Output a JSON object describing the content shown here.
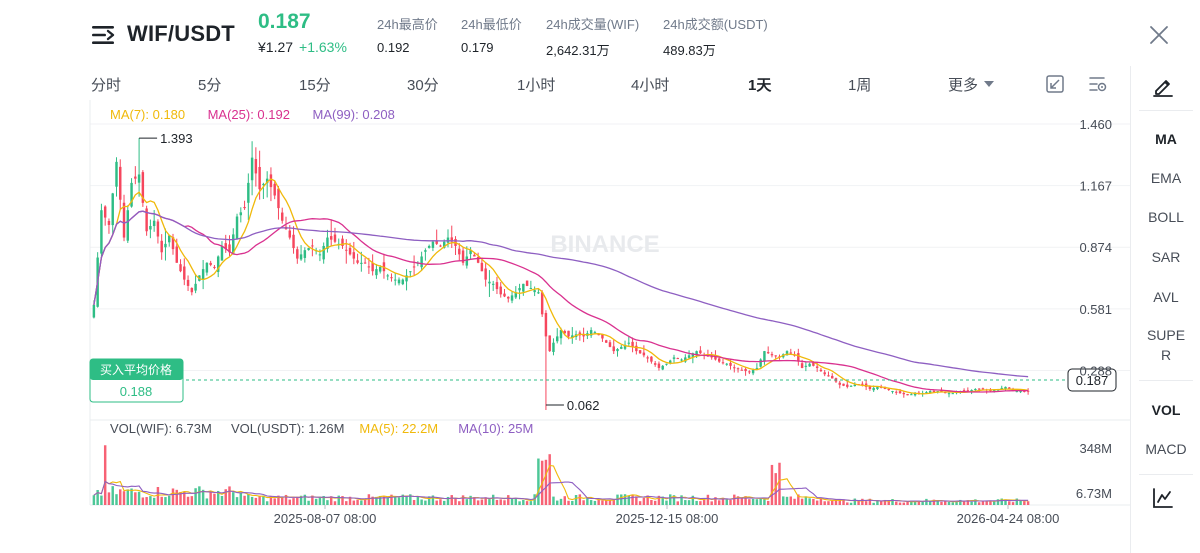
{
  "header": {
    "pair": "WIF/USDT",
    "last_price": "0.187",
    "cny_price": "¥1.27",
    "change": "+1.63%",
    "stats": [
      {
        "label": "24h最高价",
        "value": "0.192"
      },
      {
        "label": "24h最低价",
        "value": "0.179"
      },
      {
        "label": "24h成交量(WIF)",
        "value": "2,642.31万"
      },
      {
        "label": "24h成交额(USDT)",
        "value": "489.83万"
      }
    ]
  },
  "tabs": [
    {
      "label": "分时"
    },
    {
      "label": "5分"
    },
    {
      "label": "15分"
    },
    {
      "label": "30分"
    },
    {
      "label": "1小时"
    },
    {
      "label": "4小时"
    },
    {
      "label": "1天"
    },
    {
      "label": "1周"
    },
    {
      "label": "更多"
    }
  ],
  "active_tab": "1天",
  "sidebar": {
    "items": [
      {
        "label": "MA"
      },
      {
        "label": "EMA"
      },
      {
        "label": "BOLL"
      },
      {
        "label": "SAR"
      },
      {
        "label": "AVL"
      },
      {
        "label": "SUPER"
      },
      {
        "label": "VOL"
      },
      {
        "label": "MACD"
      }
    ]
  },
  "icons": {
    "menu": "menu-icon",
    "close": "close-icon",
    "draw": "pencil-icon",
    "fullscreen": "fullscreen-icon",
    "settings": "chart-settings-icon",
    "indicator": "indicator-chart-icon"
  },
  "colors": {
    "up": "#2ebd85",
    "down": "#f6465d",
    "ma7": "#f0b90b",
    "ma25": "#d9318f",
    "ma99": "#8e5fc2",
    "vol_ma5": "#f0b90b",
    "vol_ma10": "#8e5fc2"
  },
  "chart_data": {
    "type": "candlestick",
    "watermark": "BINANCE",
    "legend_ma": [
      {
        "label": "MA(7): 0.180",
        "color": "#f0b90b"
      },
      {
        "label": "MA(25): 0.192",
        "color": "#d9318f"
      },
      {
        "label": "MA(99): 0.208",
        "color": "#8e5fc2"
      }
    ],
    "y_ticks": [
      "1.460",
      "1.167",
      "0.874",
      "0.581",
      "0.288"
    ],
    "y_range": [
      0.1,
      1.46
    ],
    "x_ticks": [
      "2025-08-07 08:00",
      "2025-12-15 08:00",
      "2026-04-24 08:00"
    ],
    "high_label": "1.393",
    "low_label": "0.062",
    "current_price": "0.187",
    "avg_buy": {
      "label": "买入平均价格",
      "value": "0.188"
    },
    "closes_anchor": [
      [
        0,
        0.6
      ],
      [
        2,
        1.05
      ],
      [
        4,
        0.98
      ],
      [
        6,
        1.28
      ],
      [
        8,
        0.92
      ],
      [
        10,
        1.18
      ],
      [
        12,
        1.22
      ],
      [
        14,
        0.95
      ],
      [
        16,
        1.0
      ],
      [
        18,
        0.85
      ],
      [
        20,
        0.93
      ],
      [
        22,
        0.8
      ],
      [
        24,
        0.72
      ],
      [
        26,
        0.66
      ],
      [
        28,
        0.74
      ],
      [
        30,
        0.8
      ],
      [
        32,
        0.78
      ],
      [
        34,
        0.88
      ],
      [
        36,
        0.85
      ],
      [
        38,
        1.02
      ],
      [
        40,
        1.06
      ],
      [
        42,
        1.3
      ],
      [
        44,
        1.15
      ],
      [
        46,
        1.2
      ],
      [
        48,
        1.12
      ],
      [
        50,
        1.0
      ],
      [
        52,
        0.92
      ],
      [
        54,
        0.82
      ],
      [
        56,
        0.86
      ],
      [
        58,
        0.88
      ],
      [
        60,
        0.84
      ],
      [
        62,
        0.92
      ],
      [
        64,
        0.9
      ],
      [
        66,
        0.88
      ],
      [
        68,
        0.84
      ],
      [
        70,
        0.8
      ],
      [
        72,
        0.8
      ],
      [
        74,
        0.76
      ],
      [
        76,
        0.78
      ],
      [
        78,
        0.74
      ],
      [
        80,
        0.72
      ],
      [
        82,
        0.72
      ],
      [
        84,
        0.76
      ],
      [
        86,
        0.8
      ],
      [
        88,
        0.86
      ],
      [
        90,
        0.9
      ],
      [
        92,
        0.88
      ],
      [
        94,
        0.92
      ],
      [
        96,
        0.88
      ],
      [
        98,
        0.8
      ],
      [
        100,
        0.86
      ],
      [
        102,
        0.8
      ],
      [
        104,
        0.72
      ],
      [
        106,
        0.7
      ],
      [
        108,
        0.65
      ],
      [
        110,
        0.63
      ],
      [
        112,
        0.66
      ],
      [
        114,
        0.7
      ],
      [
        116,
        0.68
      ],
      [
        118,
        0.66
      ],
      [
        120,
        0.45
      ],
      [
        121,
        0.38
      ],
      [
        122,
        0.42
      ],
      [
        124,
        0.48
      ],
      [
        126,
        0.45
      ],
      [
        128,
        0.46
      ],
      [
        130,
        0.45
      ],
      [
        132,
        0.48
      ],
      [
        134,
        0.46
      ],
      [
        136,
        0.42
      ],
      [
        138,
        0.38
      ],
      [
        140,
        0.4
      ],
      [
        142,
        0.42
      ],
      [
        144,
        0.38
      ],
      [
        146,
        0.36
      ],
      [
        148,
        0.33
      ],
      [
        150,
        0.3
      ],
      [
        152,
        0.32
      ],
      [
        154,
        0.35
      ],
      [
        156,
        0.34
      ],
      [
        158,
        0.36
      ],
      [
        160,
        0.38
      ],
      [
        162,
        0.36
      ],
      [
        164,
        0.35
      ],
      [
        166,
        0.33
      ],
      [
        168,
        0.32
      ],
      [
        170,
        0.3
      ],
      [
        172,
        0.29
      ],
      [
        174,
        0.28
      ],
      [
        176,
        0.3
      ],
      [
        178,
        0.38
      ],
      [
        180,
        0.36
      ],
      [
        182,
        0.35
      ],
      [
        184,
        0.38
      ],
      [
        186,
        0.36
      ],
      [
        188,
        0.3
      ],
      [
        190,
        0.32
      ],
      [
        192,
        0.3
      ],
      [
        194,
        0.27
      ],
      [
        196,
        0.25
      ],
      [
        198,
        0.22
      ],
      [
        200,
        0.21
      ],
      [
        202,
        0.22
      ],
      [
        204,
        0.22
      ],
      [
        206,
        0.2
      ],
      [
        208,
        0.21
      ],
      [
        210,
        0.2
      ],
      [
        212,
        0.19
      ],
      [
        214,
        0.18
      ],
      [
        216,
        0.17
      ],
      [
        218,
        0.18
      ],
      [
        220,
        0.18
      ],
      [
        222,
        0.19
      ],
      [
        224,
        0.19
      ],
      [
        226,
        0.18
      ],
      [
        228,
        0.18
      ],
      [
        230,
        0.19
      ],
      [
        232,
        0.19
      ],
      [
        234,
        0.2
      ],
      [
        236,
        0.2
      ],
      [
        238,
        0.19
      ],
      [
        240,
        0.2
      ],
      [
        242,
        0.21
      ],
      [
        244,
        0.19
      ],
      [
        246,
        0.19
      ],
      [
        248,
        0.187
      ]
    ],
    "volume_legend": [
      {
        "label": "VOL(WIF): 6.73M",
        "color": "#474d57"
      },
      {
        "label": "VOL(USDT): 1.26M",
        "color": "#474d57"
      },
      {
        "label": "MA(5): 22.2M",
        "color": "#f0b90b"
      },
      {
        "label": "MA(10): 25M",
        "color": "#8e5fc2"
      }
    ],
    "volume_y_ticks": [
      "348M",
      "6.73M"
    ],
    "volume_range_m": [
      0,
      348
    ]
  }
}
